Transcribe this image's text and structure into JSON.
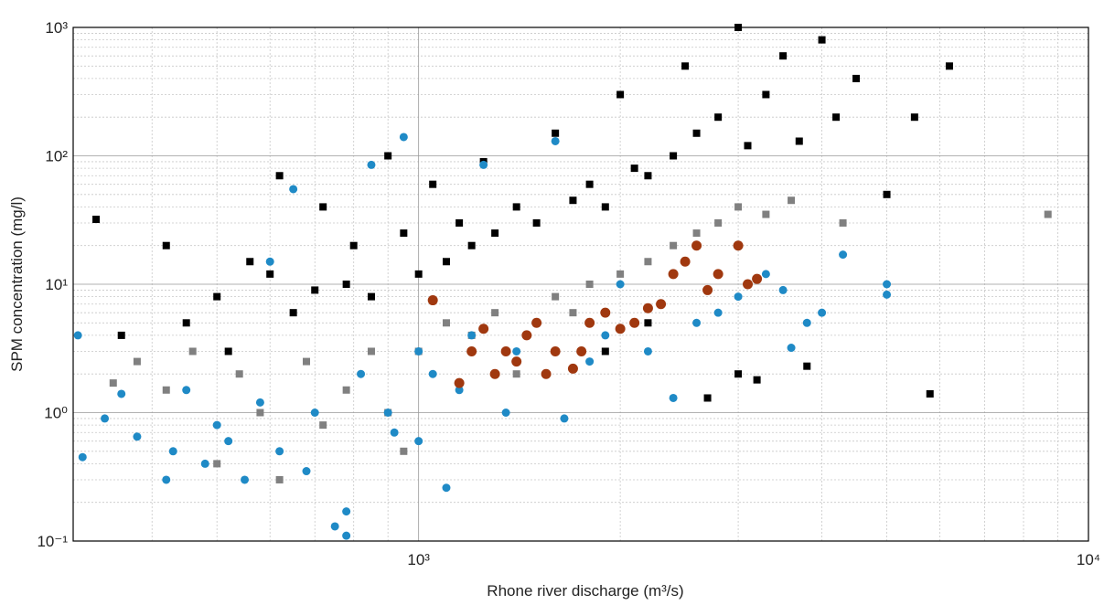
{
  "chart_data": {
    "type": "scatter",
    "xlabel": "Rhone river discharge (m³/s)",
    "ylabel": "SPM concentration (mg/l)",
    "xscale": "log",
    "yscale": "log",
    "grid": true,
    "xlim": [
      305,
      10000
    ],
    "ylim": [
      0.1,
      1000
    ],
    "xticks": [
      {
        "value": 1000,
        "label": "10³"
      },
      {
        "value": 10000,
        "label": "10⁴"
      }
    ],
    "yticks": [
      {
        "value": 0.1,
        "label": "10⁻¹"
      },
      {
        "value": 1,
        "label": "10⁰"
      },
      {
        "value": 10,
        "label": "10¹"
      },
      {
        "value": 100,
        "label": "10²"
      },
      {
        "value": 1000,
        "label": "10³"
      }
    ],
    "xminorticks": [
      400,
      500,
      600,
      700,
      800,
      900,
      2000,
      3000,
      4000,
      5000,
      6000,
      7000,
      8000,
      9000
    ],
    "yminorticks": [
      0.2,
      0.3,
      0.4,
      0.5,
      0.6,
      0.7,
      0.8,
      0.9,
      2,
      3,
      4,
      5,
      6,
      7,
      8,
      9,
      20,
      30,
      40,
      50,
      60,
      70,
      80,
      90,
      200,
      300,
      400,
      500,
      600,
      700,
      800,
      900
    ],
    "series": [
      {
        "color": "#000000",
        "marker": "square",
        "x": [
          330,
          360,
          420,
          450,
          500,
          520,
          560,
          600,
          620,
          650,
          700,
          720,
          780,
          800,
          850,
          900,
          950,
          1000,
          1050,
          1100,
          1150,
          1200,
          1250,
          1300,
          1400,
          1500,
          1600,
          1700,
          1800,
          1900,
          2000,
          2100,
          2200,
          2400,
          2500,
          2600,
          2800,
          3000,
          3100,
          3300,
          3500,
          3700,
          4000,
          4200,
          4500,
          5000,
          5500,
          6200,
          3000,
          3800,
          2700,
          1900,
          5800,
          2200,
          3200
        ],
        "values": [
          32,
          4,
          20,
          5,
          8,
          3,
          15,
          12,
          70,
          6,
          9,
          40,
          10,
          20,
          8,
          100,
          25,
          12,
          60,
          15,
          30,
          20,
          90,
          25,
          40,
          30,
          150,
          45,
          60,
          40,
          300,
          80,
          70,
          100,
          500,
          150,
          200,
          1000,
          120,
          300,
          600,
          130,
          800,
          200,
          400,
          50,
          200,
          500,
          2,
          2.3,
          1.3,
          3,
          1.4,
          5,
          1.8
        ]
      },
      {
        "color": "#808080",
        "marker": "square",
        "x": [
          350,
          380,
          420,
          460,
          500,
          540,
          580,
          620,
          680,
          720,
          780,
          850,
          900,
          950,
          1000,
          1100,
          1200,
          1300,
          1400,
          1500,
          1600,
          1700,
          1800,
          2000,
          2200,
          2400,
          2600,
          2800,
          3000,
          3300,
          3600,
          4300,
          8700
        ],
        "values": [
          1.7,
          2.5,
          1.5,
          3,
          0.4,
          2,
          1,
          0.3,
          2.5,
          0.8,
          1.5,
          3,
          1,
          0.5,
          3,
          5,
          4,
          6,
          2,
          5,
          8,
          6,
          10,
          12,
          15,
          20,
          25,
          30,
          40,
          35,
          45,
          30,
          35
        ]
      },
      {
        "color": "#1f8ac6",
        "marker": "circle",
        "x": [
          310,
          315,
          340,
          360,
          380,
          420,
          430,
          450,
          480,
          500,
          520,
          550,
          580,
          600,
          620,
          650,
          680,
          700,
          750,
          780,
          780,
          820,
          850,
          900,
          920,
          950,
          1000,
          1000,
          1050,
          1100,
          1150,
          1200,
          1250,
          1300,
          1350,
          1400,
          1500,
          1600,
          1650,
          1800,
          1900,
          2000,
          2200,
          2400,
          2600,
          2800,
          3000,
          3300,
          3500,
          3800,
          4000,
          4300,
          5000,
          5000,
          3600
        ],
        "values": [
          4,
          0.45,
          0.9,
          1.4,
          0.65,
          0.3,
          0.5,
          1.5,
          0.4,
          0.8,
          0.6,
          0.3,
          1.2,
          15,
          0.5,
          55,
          0.35,
          1,
          0.13,
          0.11,
          0.17,
          2,
          85,
          1,
          0.7,
          140,
          0.6,
          3,
          2,
          0.26,
          1.5,
          4,
          85,
          2,
          1,
          3,
          5,
          130,
          0.9,
          2.5,
          4,
          10,
          3,
          1.3,
          5,
          6,
          8,
          12,
          9,
          5,
          6,
          17,
          10,
          8.3,
          3.2
        ]
      },
      {
        "color": "#a0380f",
        "marker": "circle",
        "x": [
          1050,
          1150,
          1200,
          1250,
          1300,
          1350,
          1400,
          1450,
          1500,
          1550,
          1600,
          1700,
          1750,
          1800,
          1900,
          2000,
          2100,
          2200,
          2300,
          2400,
          2500,
          2600,
          2700,
          2800,
          3000,
          3100,
          3200
        ],
        "values": [
          7.5,
          1.7,
          3,
          4.5,
          2,
          3,
          2.5,
          4,
          5,
          2,
          3,
          2.2,
          3,
          5,
          6,
          4.5,
          5,
          6.5,
          7,
          12,
          15,
          20,
          9,
          12,
          20,
          10,
          11
        ]
      }
    ]
  }
}
